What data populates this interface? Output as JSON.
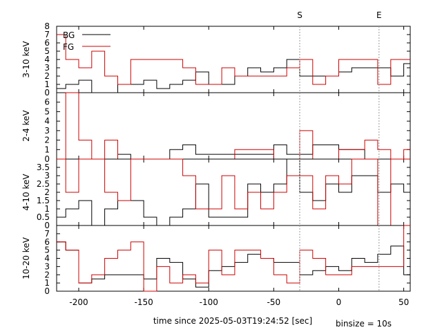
{
  "chart_data": {
    "type": "line",
    "step": true,
    "xlabel": "time since 2025-05-03T19:24:52 [sec]",
    "footnote": "binsize = 10s",
    "xlim": [
      -217,
      55
    ],
    "xticks": [
      -200,
      -150,
      -100,
      -50,
      0,
      50
    ],
    "markers": [
      {
        "label": "S",
        "x": -30
      },
      {
        "label": "E",
        "x": 31
      }
    ],
    "legend": {
      "placement": "top-left",
      "entries": [
        "BG",
        "FG"
      ]
    },
    "colors": {
      "BG": "#000000",
      "FG": "#cc0000",
      "marker": "#999999"
    },
    "panels": [
      {
        "ylabel": "3-10 keV",
        "ylim": [
          0,
          8
        ],
        "yticks": [
          0,
          1,
          2,
          3,
          4,
          5,
          6,
          7,
          8
        ],
        "series": [
          {
            "name": "BG",
            "x": [
              -220,
              -210,
              -200,
              -190,
              -180,
              -170,
              -160,
              -150,
              -140,
              -130,
              -120,
              -110,
              -100,
              -90,
              -80,
              -70,
              -60,
              -50,
              -40,
              -30,
              -20,
              -10,
              0,
              10,
              20,
              30,
              40,
              50
            ],
            "y": [
              0.5,
              1,
              1.5,
              0,
              0,
              1,
              1,
              1.5,
              0.5,
              1,
              1.5,
              2.5,
              1,
              1,
              2,
              3,
              2.5,
              3,
              4,
              2,
              2,
              2,
              2.5,
              3,
              3,
              3,
              2,
              3.5
            ]
          },
          {
            "name": "FG",
            "x": [
              -220,
              -210,
              -200,
              -190,
              -180,
              -170,
              -160,
              -150,
              -140,
              -130,
              -120,
              -110,
              -100,
              -90,
              -80,
              -70,
              -60,
              -50,
              -40,
              -30,
              -20,
              -10,
              0,
              10,
              20,
              30,
              40,
              50
            ],
            "y": [
              7,
              4,
              3,
              5,
              2,
              1,
              4,
              4,
              4,
              4,
              3,
              1,
              1,
              3,
              2,
              2,
              2,
              2,
              3,
              4,
              1,
              2,
              4,
              4,
              4,
              1,
              4,
              4
            ]
          }
        ]
      },
      {
        "ylabel": "2-4 keV",
        "ylim": [
          0,
          7
        ],
        "yticks": [
          0,
          1,
          2,
          3,
          4,
          5,
          6
        ],
        "series": [
          {
            "name": "BG",
            "x": [
              -220,
              -210,
              -200,
              -190,
              -180,
              -170,
              -160,
              -150,
              -140,
              -130,
              -120,
              -110,
              -100,
              -90,
              -80,
              -70,
              -60,
              -50,
              -40,
              -30,
              -20,
              -10,
              0,
              10,
              20,
              30,
              40,
              50
            ],
            "y": [
              0,
              0,
              0,
              0,
              0,
              0.5,
              0,
              0,
              0,
              1,
              1.5,
              0.5,
              0.5,
              0.5,
              0.5,
              0.5,
              0.5,
              1.5,
              0.5,
              0.5,
              1.5,
              1.5,
              1,
              1,
              0,
              0,
              0,
              0
            ]
          },
          {
            "name": "FG",
            "x": [
              -220,
              -210,
              -200,
              -190,
              -180,
              -170,
              -160,
              -150,
              -140,
              -130,
              -120,
              -110,
              -100,
              -90,
              -80,
              -70,
              -60,
              -50,
              -40,
              -30,
              -20,
              -10,
              0,
              10,
              20,
              30,
              40,
              50
            ],
            "y": [
              0,
              7,
              2,
              0,
              2,
              0,
              0,
              0,
              0,
              0,
              0,
              0,
              0,
              0,
              1,
              1,
              1,
              0,
              0,
              3,
              0,
              0,
              1,
              1,
              2,
              1,
              0,
              1
            ]
          }
        ]
      },
      {
        "ylabel": "4-10 keV",
        "ylim": [
          0,
          4
        ],
        "yticks": [
          0,
          0.5,
          1,
          1.5,
          2,
          2.5,
          3,
          3.5
        ],
        "series": [
          {
            "name": "BG",
            "x": [
              -220,
              -210,
              -200,
              -190,
              -180,
              -170,
              -160,
              -150,
              -140,
              -130,
              -120,
              -110,
              -100,
              -90,
              -80,
              -70,
              -60,
              -50,
              -40,
              -30,
              -20,
              -10,
              0,
              10,
              20,
              30,
              40,
              50
            ],
            "y": [
              0.5,
              1,
              1.5,
              0,
              1,
              1.5,
              1.5,
              0.5,
              0,
              0.5,
              1,
              2.5,
              0.5,
              0.5,
              0.5,
              2.5,
              2,
              2.5,
              4,
              2,
              1.5,
              2.5,
              2,
              3,
              3,
              2,
              2.5,
              2
            ]
          },
          {
            "name": "FG",
            "x": [
              -220,
              -210,
              -200,
              -190,
              -180,
              -170,
              -160,
              -150,
              -140,
              -130,
              -120,
              -110,
              -100,
              -90,
              -80,
              -70,
              -60,
              -50,
              -40,
              -30,
              -20,
              -10,
              0,
              10,
              20,
              30,
              40,
              50
            ],
            "y": [
              4,
              2,
              4,
              4,
              2,
              1.5,
              4,
              4,
              4,
              4,
              3,
              1,
              1,
              3,
              1,
              2,
              1,
              2,
              3,
              3,
              1,
              3,
              2.5,
              4,
              4,
              0,
              4,
              4
            ]
          }
        ]
      },
      {
        "ylabel": "10-20 keV",
        "ylim": [
          0,
          8
        ],
        "yticks": [
          0,
          1,
          2,
          3,
          4,
          5,
          6,
          7
        ],
        "series": [
          {
            "name": "BG",
            "x": [
              -220,
              -210,
              -200,
              -190,
              -180,
              -170,
              -160,
              -150,
              -140,
              -130,
              -120,
              -110,
              -100,
              -90,
              -80,
              -70,
              -60,
              -50,
              -40,
              -30,
              -20,
              -10,
              0,
              10,
              20,
              30,
              40,
              50
            ],
            "y": [
              6,
              5,
              1,
              1.5,
              2,
              2,
              2,
              1.5,
              4,
              3.5,
              1.5,
              0.5,
              2.5,
              3,
              3.5,
              4.5,
              4,
              3.5,
              3.5,
              2,
              2.5,
              3,
              2.5,
              4,
              3.5,
              4.5,
              5.5,
              2
            ]
          },
          {
            "name": "FG",
            "x": [
              -220,
              -210,
              -200,
              -190,
              -180,
              -170,
              -160,
              -150,
              -140,
              -130,
              -120,
              -110,
              -100,
              -90,
              -80,
              -70,
              -60,
              -50,
              -40,
              -30,
              -20,
              -10,
              0,
              10,
              20,
              30,
              40,
              50
            ],
            "y": [
              6,
              5,
              1,
              2,
              4,
              5,
              6,
              0,
              3,
              1,
              2,
              1,
              5,
              2,
              5,
              5,
              4,
              2,
              1,
              5,
              4,
              2,
              2,
              3,
              3,
              3,
              3,
              8
            ]
          }
        ]
      }
    ]
  }
}
